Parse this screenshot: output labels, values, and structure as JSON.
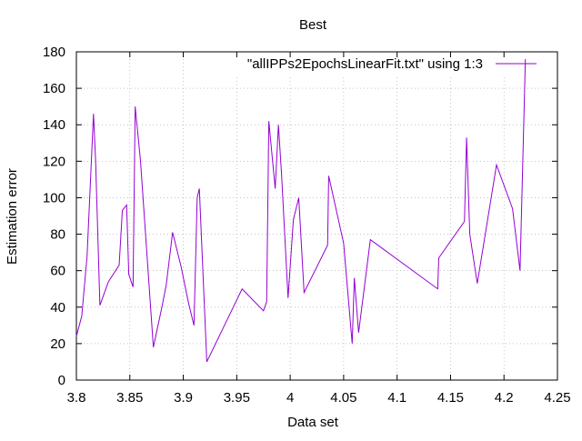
{
  "chart_data": {
    "type": "line",
    "title": "Best",
    "xlabel": "Data set",
    "ylabel": "Estimation error",
    "xlim": [
      3.8,
      4.25
    ],
    "ylim": [
      0,
      180
    ],
    "x_ticks": [
      "3.8",
      "3.85",
      "3.9",
      "3.95",
      "4",
      "4.05",
      "4.1",
      "4.15",
      "4.2",
      "4.25"
    ],
    "y_ticks": [
      "0",
      "20",
      "40",
      "60",
      "80",
      "100",
      "120",
      "140",
      "160",
      "180"
    ],
    "grid": true,
    "legend_position": "top-right",
    "series": [
      {
        "name": "\"allIPPs2EpochsLinearFit.txt\"  using 1:3",
        "color": "#9400d3",
        "x": [
          3.8,
          3.805,
          3.81,
          3.816,
          3.818,
          3.822,
          3.83,
          3.84,
          3.843,
          3.847,
          3.849,
          3.853,
          3.855,
          3.86,
          3.872,
          3.88,
          3.884,
          3.89,
          3.898,
          3.905,
          3.91,
          3.913,
          3.915,
          3.922,
          3.955,
          3.975,
          3.978,
          3.98,
          3.986,
          3.989,
          3.992,
          3.998,
          4.003,
          4.008,
          4.013,
          4.035,
          4.036,
          4.05,
          4.058,
          4.06,
          4.064,
          4.075,
          4.138,
          4.139,
          4.163,
          4.165,
          4.168,
          4.175,
          4.193,
          4.208,
          4.215,
          4.22
        ],
        "y": [
          24,
          35,
          68,
          146,
          120,
          41,
          54,
          63,
          93,
          96,
          58,
          51,
          150,
          120,
          18,
          40,
          52,
          81,
          62,
          42,
          30,
          100,
          105,
          10,
          50,
          38,
          43,
          142,
          105,
          140,
          112,
          45,
          88,
          100,
          48,
          74,
          112,
          75,
          20,
          56,
          26,
          77,
          50,
          67,
          87,
          133,
          80,
          53,
          118,
          94,
          60,
          176
        ]
      }
    ]
  }
}
